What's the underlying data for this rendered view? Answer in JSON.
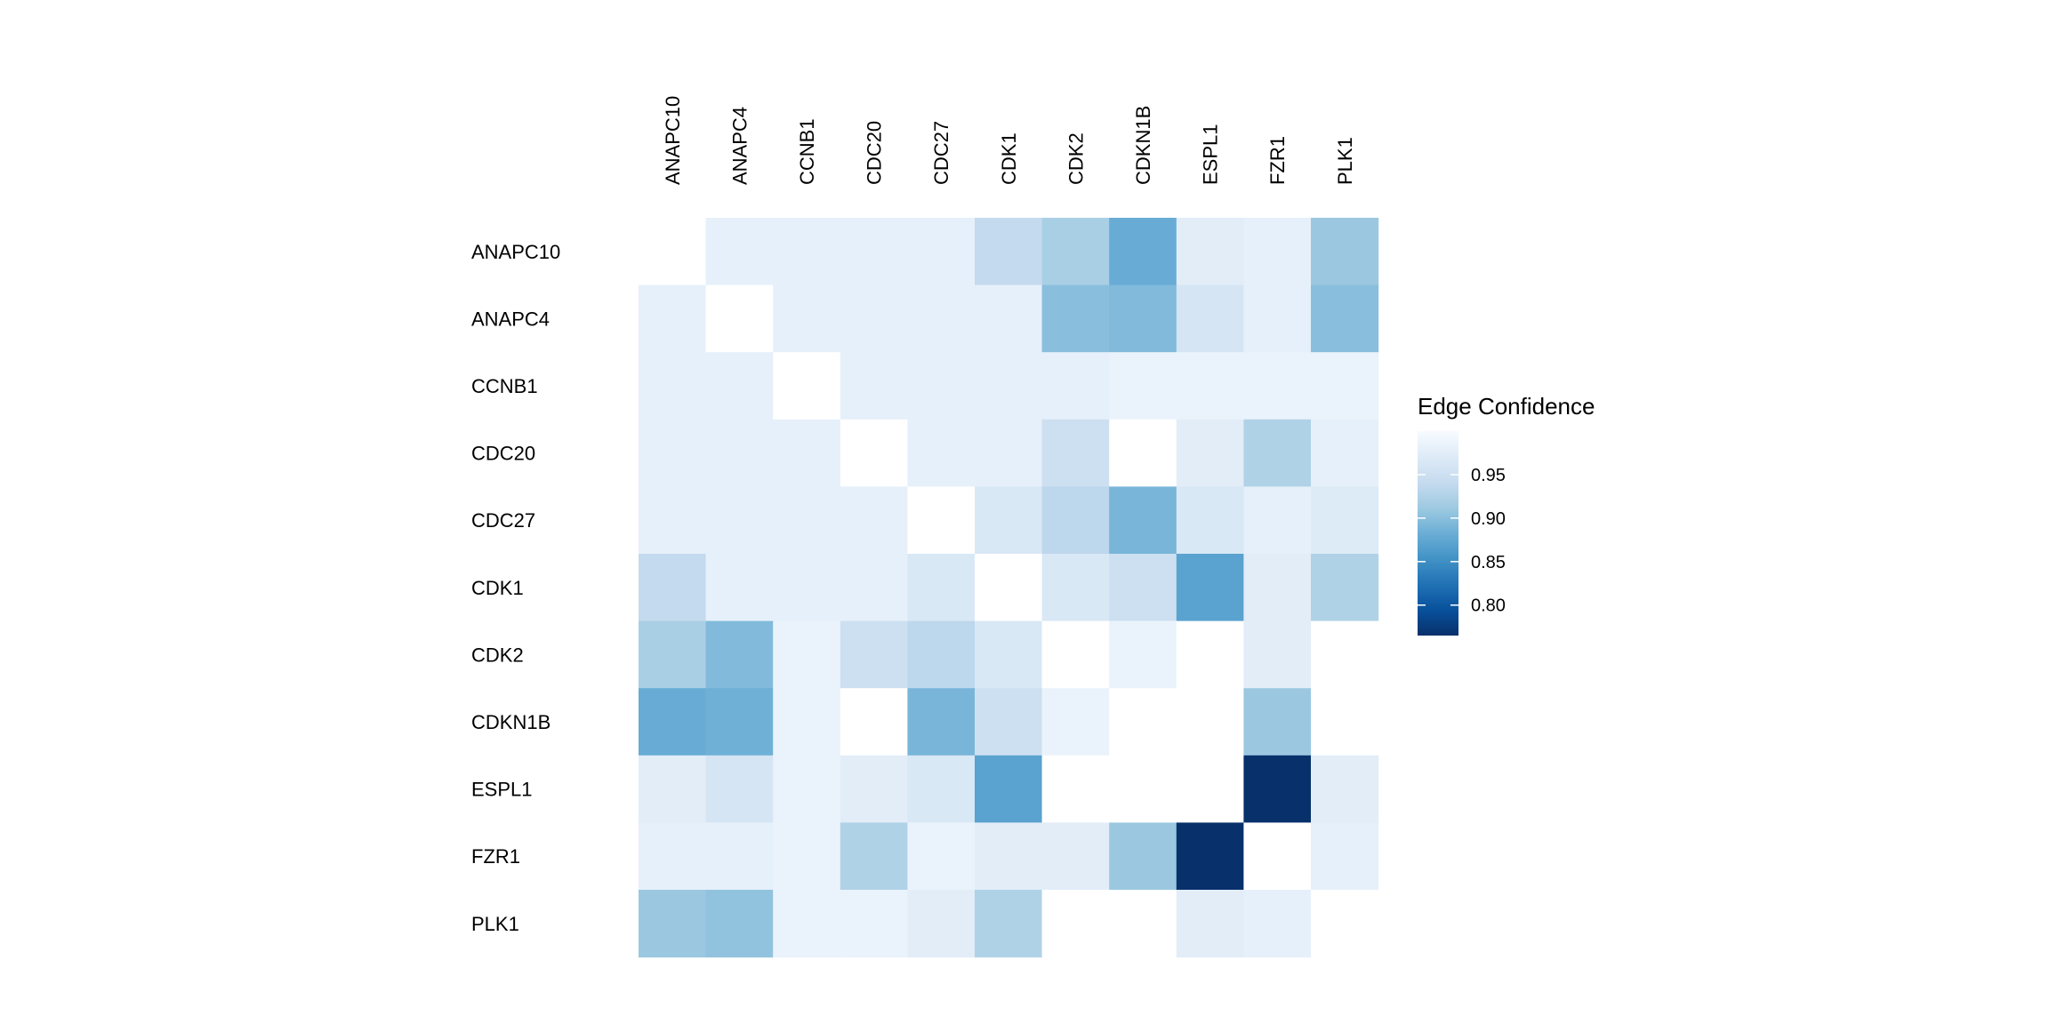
{
  "chart_data": {
    "type": "heatmap",
    "title": "",
    "xlabel": "",
    "ylabel": "",
    "columns": [
      "ANAPC10",
      "ANAPC4",
      "CCNB1",
      "CDC20",
      "CDC27",
      "CDK1",
      "CDK2",
      "CDKN1B",
      "ESPL1",
      "FZR1",
      "PLK1"
    ],
    "rows": [
      "ANAPC10",
      "ANAPC4",
      "CCNB1",
      "CDC20",
      "CDC27",
      "CDK1",
      "CDK2",
      "CDKN1B",
      "ESPL1",
      "FZR1",
      "PLK1"
    ],
    "values": [
      [
        null,
        0.98,
        0.98,
        0.98,
        0.98,
        0.94,
        0.92,
        0.88,
        0.975,
        0.98,
        0.91
      ],
      [
        0.98,
        null,
        0.98,
        0.98,
        0.98,
        0.98,
        0.9,
        0.895,
        0.96,
        0.98,
        0.9
      ],
      [
        0.98,
        0.98,
        null,
        0.98,
        0.98,
        0.98,
        0.98,
        0.985,
        0.985,
        0.985,
        0.985
      ],
      [
        0.98,
        0.98,
        0.98,
        null,
        0.98,
        0.98,
        0.95,
        null,
        0.975,
        0.925,
        0.98
      ],
      [
        0.98,
        0.98,
        0.98,
        0.98,
        null,
        0.965,
        0.935,
        0.89,
        0.965,
        0.98,
        0.97
      ],
      [
        0.94,
        0.98,
        0.98,
        0.98,
        0.965,
        null,
        0.965,
        0.95,
        0.87,
        0.975,
        0.925
      ],
      [
        0.92,
        0.895,
        0.985,
        0.95,
        0.935,
        0.965,
        null,
        0.985,
        null,
        0.975,
        null
      ],
      [
        0.88,
        0.885,
        0.985,
        null,
        0.89,
        0.95,
        0.985,
        null,
        null,
        0.91,
        null
      ],
      [
        0.975,
        0.96,
        0.985,
        0.975,
        0.965,
        0.87,
        null,
        null,
        null,
        0.765,
        0.975
      ],
      [
        0.98,
        0.98,
        0.985,
        0.925,
        0.985,
        0.975,
        0.975,
        0.91,
        0.765,
        null,
        0.98
      ],
      [
        0.91,
        0.905,
        0.985,
        0.985,
        0.975,
        0.925,
        null,
        null,
        0.975,
        0.98,
        null
      ]
    ],
    "colorbar": {
      "title": "Edge Confidence",
      "min": 0.765,
      "max": 1.0,
      "ticks": [
        0.95,
        0.9,
        0.85,
        0.8
      ],
      "tick_labels": [
        "0.95",
        "0.90",
        "0.85",
        "0.80"
      ],
      "palette": "Blues",
      "placement": "right"
    },
    "grid": false,
    "colors": {
      "low": "#08306b",
      "high": "#f7fbff",
      "missing": "#ffffff"
    }
  }
}
